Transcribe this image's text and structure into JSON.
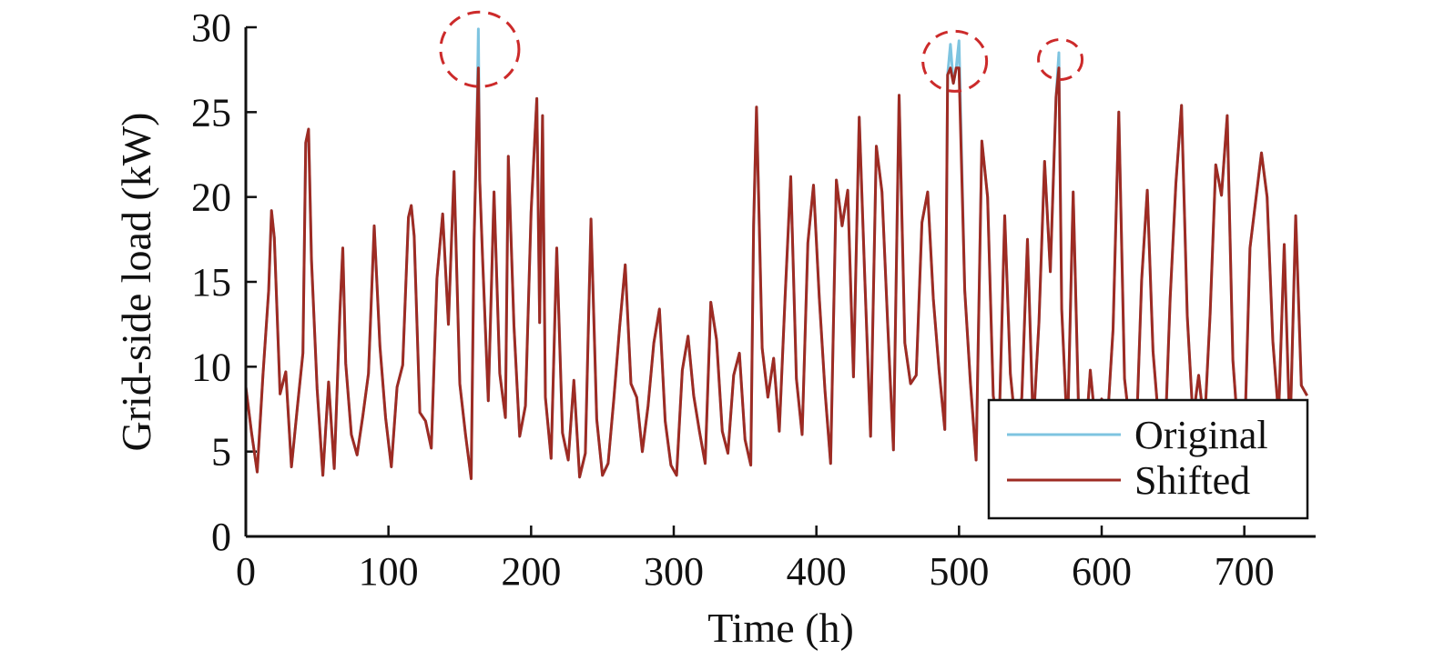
{
  "chart_data": {
    "type": "line",
    "xlabel": "Time (h)",
    "ylabel": "Grid-side load (kW)",
    "xlim": [
      0,
      750
    ],
    "ylim": [
      0,
      30
    ],
    "x_ticks": [
      0,
      100,
      200,
      300,
      400,
      500,
      600,
      700
    ],
    "y_ticks": [
      0,
      5,
      10,
      15,
      20,
      25,
      30
    ],
    "grid": false,
    "legend": {
      "position": "bottom-right",
      "entries": [
        "Original",
        "Shifted"
      ]
    },
    "series": [
      {
        "name": "Original",
        "color": "#7ec4e0",
        "x": [
          0,
          4,
          8,
          12,
          16,
          18,
          20,
          24,
          28,
          32,
          36,
          40,
          42,
          44,
          46,
          50,
          54,
          58,
          62,
          66,
          68,
          70,
          74,
          78,
          82,
          86,
          90,
          94,
          98,
          102,
          106,
          110,
          114,
          116,
          118,
          122,
          126,
          130,
          134,
          138,
          142,
          146,
          150,
          154,
          158,
          160,
          162,
          163,
          164,
          166,
          170,
          174,
          178,
          182,
          184,
          188,
          192,
          196,
          200,
          204,
          206,
          208,
          210,
          214,
          218,
          222,
          226,
          230,
          234,
          238,
          242,
          246,
          250,
          254,
          258,
          262,
          266,
          270,
          274,
          278,
          282,
          286,
          290,
          294,
          298,
          302,
          306,
          310,
          314,
          318,
          322,
          326,
          330,
          334,
          338,
          342,
          346,
          350,
          354,
          356,
          358,
          362,
          366,
          370,
          374,
          378,
          382,
          386,
          390,
          394,
          398,
          402,
          406,
          410,
          414,
          418,
          422,
          426,
          430,
          434,
          438,
          442,
          446,
          450,
          454,
          458,
          462,
          466,
          470,
          474,
          478,
          482,
          486,
          490,
          492,
          494,
          496,
          498,
          500,
          504,
          508,
          512,
          516,
          520,
          524,
          528,
          532,
          536,
          540,
          544,
          548,
          552,
          556,
          560,
          564,
          568,
          570,
          572,
          576,
          580,
          584,
          588,
          592,
          596,
          600,
          604,
          608,
          612,
          616,
          620,
          624,
          628,
          632,
          636,
          640,
          644,
          648,
          652,
          656,
          660,
          664,
          668,
          672,
          676,
          680,
          684,
          688,
          692,
          696,
          700,
          704,
          708,
          712,
          716,
          720,
          724,
          728,
          732,
          736,
          740,
          744
        ],
        "values": [
          8.8,
          6.1,
          3.8,
          9.5,
          14.5,
          19.2,
          17.6,
          8.4,
          9.7,
          4.1,
          7.5,
          10.8,
          23.2,
          24.0,
          16.3,
          8.7,
          3.6,
          9.1,
          4.0,
          13.3,
          17.0,
          10.2,
          6.0,
          4.8,
          7.1,
          9.6,
          18.3,
          11.2,
          7.0,
          4.1,
          8.8,
          10.1,
          18.8,
          19.5,
          17.7,
          7.3,
          6.8,
          5.2,
          15.2,
          19.0,
          12.5,
          21.5,
          9.0,
          6.0,
          3.4,
          17.5,
          24.4,
          29.9,
          21.0,
          16.3,
          8.0,
          20.3,
          9.6,
          7.0,
          22.4,
          12.4,
          5.9,
          7.7,
          19.1,
          25.8,
          12.6,
          24.8,
          8.2,
          4.6,
          17.0,
          6.1,
          4.5,
          9.2,
          3.5,
          4.9,
          18.7,
          6.9,
          3.6,
          4.3,
          8.1,
          12.3,
          16.0,
          9.0,
          8.2,
          5.0,
          7.7,
          11.4,
          13.4,
          6.8,
          4.2,
          3.6,
          9.8,
          11.8,
          8.3,
          6.2,
          4.3,
          13.8,
          11.6,
          6.2,
          4.9,
          9.5,
          10.8,
          5.7,
          4.2,
          18.3,
          25.3,
          11.1,
          8.2,
          10.5,
          6.2,
          14.0,
          21.2,
          9.3,
          6.0,
          17.3,
          20.7,
          14.1,
          8.6,
          4.3,
          21.0,
          18.3,
          20.4,
          9.4,
          24.7,
          15.1,
          5.9,
          23.0,
          20.3,
          12.5,
          5.1,
          26.0,
          11.4,
          9.0,
          9.5,
          18.5,
          20.3,
          14.0,
          9.8,
          6.3,
          27.2,
          29.0,
          26.7,
          27.6,
          29.2,
          14.5,
          9.0,
          4.5,
          23.3,
          20.0,
          8.3,
          6.1,
          18.9,
          9.6,
          6.1,
          8.2,
          17.5,
          6.4,
          12.6,
          22.1,
          15.6,
          25.9,
          28.5,
          13.4,
          5.9,
          20.3,
          6.9,
          4.9,
          9.8,
          6.3,
          8.1,
          6.8,
          12.2,
          25.0,
          9.3,
          6.3,
          5.2,
          15.1,
          20.4,
          10.9,
          6.7,
          4.7,
          14.0,
          20.8,
          25.4,
          13.0,
          6.9,
          9.5,
          6.4,
          13.1,
          21.9,
          20.1,
          24.8,
          10.4,
          5.7,
          5.2,
          17.0,
          19.8,
          22.6,
          20.0,
          11.5,
          7.1,
          17.2,
          5.8,
          18.9,
          8.9,
          8.3
        ]
      },
      {
        "name": "Shifted",
        "color": "#9e2b23",
        "x": [
          0,
          4,
          8,
          12,
          16,
          18,
          20,
          24,
          28,
          32,
          36,
          40,
          42,
          44,
          46,
          50,
          54,
          58,
          62,
          66,
          68,
          70,
          74,
          78,
          82,
          86,
          90,
          94,
          98,
          102,
          106,
          110,
          114,
          116,
          118,
          122,
          126,
          130,
          134,
          138,
          142,
          146,
          150,
          154,
          158,
          160,
          162,
          163,
          164,
          166,
          170,
          174,
          178,
          182,
          184,
          188,
          192,
          196,
          200,
          204,
          206,
          208,
          210,
          214,
          218,
          222,
          226,
          230,
          234,
          238,
          242,
          246,
          250,
          254,
          258,
          262,
          266,
          270,
          274,
          278,
          282,
          286,
          290,
          294,
          298,
          302,
          306,
          310,
          314,
          318,
          322,
          326,
          330,
          334,
          338,
          342,
          346,
          350,
          354,
          356,
          358,
          362,
          366,
          370,
          374,
          378,
          382,
          386,
          390,
          394,
          398,
          402,
          406,
          410,
          414,
          418,
          422,
          426,
          430,
          434,
          438,
          442,
          446,
          450,
          454,
          458,
          462,
          466,
          470,
          474,
          478,
          482,
          486,
          490,
          492,
          494,
          496,
          498,
          500,
          504,
          508,
          512,
          516,
          520,
          524,
          528,
          532,
          536,
          540,
          544,
          548,
          552,
          556,
          560,
          564,
          568,
          570,
          572,
          576,
          580,
          584,
          588,
          592,
          596,
          600,
          604,
          608,
          612,
          616,
          620,
          624,
          628,
          632,
          636,
          640,
          644,
          648,
          652,
          656,
          660,
          664,
          668,
          672,
          676,
          680,
          684,
          688,
          692,
          696,
          700,
          704,
          708,
          712,
          716,
          720,
          724,
          728,
          732,
          736,
          740,
          744
        ],
        "values": [
          8.8,
          6.1,
          3.8,
          9.5,
          14.5,
          19.2,
          17.6,
          8.4,
          9.7,
          4.1,
          7.5,
          10.8,
          23.2,
          24.0,
          16.3,
          8.7,
          3.6,
          9.1,
          4.0,
          13.3,
          17.0,
          10.2,
          6.0,
          4.8,
          7.1,
          9.6,
          18.3,
          11.2,
          7.0,
          4.1,
          8.8,
          10.1,
          18.8,
          19.5,
          17.7,
          7.3,
          6.8,
          5.2,
          15.2,
          19.0,
          12.5,
          21.5,
          9.0,
          6.0,
          3.4,
          17.5,
          24.4,
          27.6,
          21.0,
          16.3,
          8.0,
          20.3,
          9.6,
          7.0,
          22.4,
          12.4,
          5.9,
          7.7,
          19.1,
          25.8,
          12.6,
          24.8,
          8.2,
          4.6,
          17.0,
          6.1,
          4.5,
          9.2,
          3.5,
          4.9,
          18.7,
          6.9,
          3.6,
          4.3,
          8.1,
          12.3,
          16.0,
          9.0,
          8.2,
          5.0,
          7.7,
          11.4,
          13.4,
          6.8,
          4.2,
          3.6,
          9.8,
          11.8,
          8.3,
          6.2,
          4.3,
          13.8,
          11.6,
          6.2,
          4.9,
          9.5,
          10.8,
          5.7,
          4.2,
          18.3,
          25.3,
          11.1,
          8.2,
          10.5,
          6.2,
          14.0,
          21.2,
          9.3,
          6.0,
          17.3,
          20.7,
          14.1,
          8.6,
          4.3,
          21.0,
          18.3,
          20.4,
          9.4,
          24.7,
          15.1,
          5.9,
          23.0,
          20.3,
          12.5,
          5.1,
          26.0,
          11.4,
          9.0,
          9.5,
          18.5,
          20.3,
          14.0,
          9.8,
          6.3,
          27.2,
          27.6,
          26.7,
          27.6,
          27.6,
          14.5,
          9.0,
          4.5,
          23.3,
          20.0,
          8.3,
          6.1,
          18.9,
          9.6,
          6.1,
          8.2,
          17.5,
          6.4,
          12.6,
          22.1,
          15.6,
          25.9,
          27.6,
          13.4,
          5.9,
          20.3,
          6.9,
          4.9,
          9.8,
          6.3,
          8.1,
          6.8,
          12.2,
          25.0,
          9.3,
          6.3,
          5.2,
          15.1,
          20.4,
          10.9,
          6.7,
          4.7,
          14.0,
          20.8,
          25.4,
          13.0,
          6.9,
          9.5,
          6.4,
          13.1,
          21.9,
          20.1,
          24.8,
          10.4,
          5.7,
          5.2,
          17.0,
          19.8,
          22.6,
          20.0,
          11.5,
          7.1,
          17.2,
          5.8,
          18.9,
          8.9,
          8.3
        ]
      }
    ],
    "annotations": [
      {
        "type": "dashed-circle",
        "x": 164,
        "y": 28.7,
        "color": "#cc2a2a"
      },
      {
        "type": "dashed-circle",
        "x": 497,
        "y": 28.0,
        "color": "#cc2a2a"
      },
      {
        "type": "dashed-circle",
        "x": 571,
        "y": 28.1,
        "color": "#cc2a2a"
      }
    ]
  }
}
